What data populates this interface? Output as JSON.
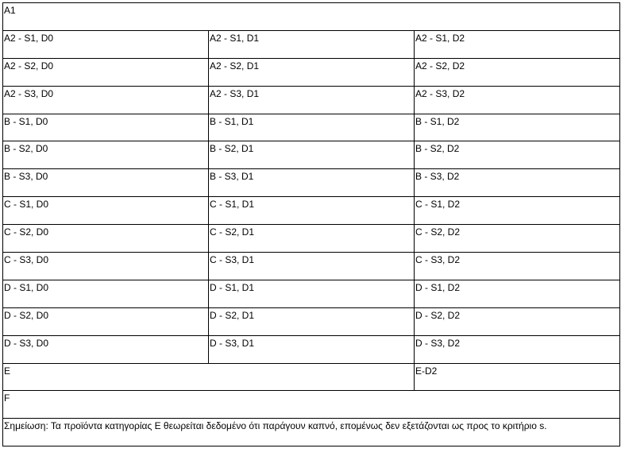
{
  "table": {
    "rows": [
      [
        "A1"
      ],
      [
        "A2 - S1, D0",
        "A2 - S1, D1",
        "A2 - S1, D2"
      ],
      [
        "A2 - S2, D0",
        "A2 - S2, D1",
        "A2 - S2, D2"
      ],
      [
        "A2 - S3, D0",
        "A2 - S3, D1",
        "A2 - S3, D2"
      ],
      [
        "B - S1, D0",
        "B - S1, D1",
        "B - S1, D2"
      ],
      [
        "B - S2, D0",
        "B - S2, D1",
        "B - S2, D2"
      ],
      [
        "B - S3, D0",
        "B - S3, D1",
        "B - S3, D2"
      ],
      [
        "C - S1, D0",
        "C - S1, D1",
        "C - S1, D2"
      ],
      [
        "C - S2, D0",
        "C - S2, D1",
        "C - S2, D2"
      ],
      [
        "C - S3, D0",
        "C - S3, D1",
        "C - S3, D2"
      ],
      [
        "D - S1, D0",
        "D - S1, D1",
        "D - S1, D2"
      ],
      [
        "D - S2, D0",
        "D - S2, D1",
        "D - S2, D2"
      ],
      [
        "D - S3, D0",
        "D - S3, D1",
        "D - S3, D2"
      ],
      [
        "E",
        "E-D2"
      ],
      [
        "F"
      ],
      [
        "Σημείωση: Τα προϊόντα κατηγορίας Ε θεωρείται δεδομένο ότι παράγουν καπνό, επομένως δεν εξετάζονται ως προς το κριτήριο s."
      ]
    ]
  }
}
